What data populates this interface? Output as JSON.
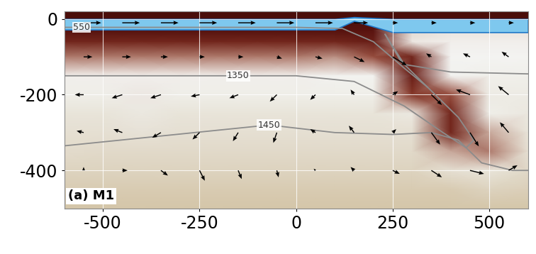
{
  "chart_data": {
    "type": "field",
    "panel_label": "(a) M1",
    "xlim": [
      -600,
      600
    ],
    "ylim": [
      -500,
      20
    ],
    "xticks": [
      -500,
      -250,
      0,
      250,
      500
    ],
    "yticks": [
      0,
      -200,
      -400
    ],
    "grid": true,
    "temperature": {
      "clim": [
        0,
        1600
      ],
      "x": [
        -600,
        -500,
        -400,
        -300,
        -200,
        -100,
        0,
        100,
        200,
        300,
        400,
        500,
        600
      ],
      "y": [
        20,
        0,
        -30,
        -60,
        -100,
        -150,
        -200,
        -250,
        -300,
        -350,
        -400,
        -450,
        -500
      ],
      "values": [
        [
          0,
          0,
          0,
          0,
          0,
          0,
          0,
          0,
          0,
          0,
          0,
          0,
          0
        ],
        [
          0,
          0,
          0,
          0,
          0,
          0,
          0,
          0,
          0,
          0,
          0,
          0,
          0
        ],
        [
          300,
          300,
          300,
          300,
          300,
          300,
          300,
          300,
          400,
          1300,
          1320,
          1320,
          1320
        ],
        [
          700,
          700,
          700,
          700,
          700,
          700,
          700,
          700,
          600,
          1330,
          1340,
          1340,
          1340
        ],
        [
          1100,
          1100,
          1100,
          1100,
          1100,
          1100,
          1100,
          1150,
          1000,
          700,
          1350,
          1350,
          1350
        ],
        [
          1340,
          1340,
          1340,
          1340,
          1340,
          1340,
          1340,
          1360,
          1360,
          600,
          1360,
          1370,
          1370
        ],
        [
          1380,
          1380,
          1330,
          1380,
          1380,
          1380,
          1380,
          1380,
          1380,
          900,
          1000,
          1390,
          1390
        ],
        [
          1420,
          1420,
          1400,
          1420,
          1420,
          1420,
          1420,
          1420,
          1420,
          1400,
          700,
          1380,
          1400
        ],
        [
          1440,
          1440,
          1430,
          1440,
          1440,
          1440,
          1440,
          1440,
          1440,
          1440,
          700,
          1200,
          1420
        ],
        [
          1450,
          1460,
          1460,
          1460,
          1460,
          1460,
          1460,
          1460,
          1460,
          1460,
          1200,
          1100,
          1440
        ],
        [
          1480,
          1480,
          1480,
          1480,
          1480,
          1480,
          1480,
          1480,
          1480,
          1480,
          1440,
          1420,
          1460
        ],
        [
          1500,
          1500,
          1500,
          1500,
          1500,
          1500,
          1500,
          1500,
          1500,
          1500,
          1500,
          1480,
          1490
        ],
        [
          1520,
          1520,
          1520,
          1520,
          1520,
          1520,
          1520,
          1520,
          1520,
          1520,
          1520,
          1520,
          1520
        ]
      ]
    },
    "crust": {
      "color": "#7ec8ee",
      "x": [
        -600,
        100,
        150,
        250,
        600
      ],
      "top": [
        0,
        0,
        5,
        0,
        0
      ],
      "bottom": [
        -28,
        -28,
        -5,
        -35,
        -35
      ]
    },
    "contours": [
      {
        "name": "550",
        "color": "#8c8c8c",
        "x": [
          -600,
          -555,
          -300,
          0,
          120,
          200,
          280,
          340
        ],
        "y": [
          -22,
          -22,
          -22,
          -22,
          -25,
          -60,
          -130,
          -180
        ]
      },
      {
        "name": "1350",
        "color": "#8c8c8c",
        "x": [
          -600,
          -150,
          0,
          150,
          280,
          380,
          440,
          460,
          420,
          330,
          270,
          230,
          280,
          400,
          600
        ],
        "y": [
          -150,
          -150,
          -150,
          -165,
          -230,
          -300,
          -340,
          -320,
          -260,
          -170,
          -110,
          -40,
          -120,
          -140,
          -145
        ]
      },
      {
        "name": "1450",
        "color": "#8c8c8c",
        "x": [
          -600,
          -70,
          100,
          250,
          350,
          420,
          480,
          560,
          600
        ],
        "y": [
          -335,
          -280,
          -300,
          -305,
          -300,
          -320,
          -380,
          -400,
          -400
        ]
      }
    ],
    "velocity": {
      "color": "#000000",
      "x": [
        -550,
        -450,
        -350,
        -250,
        -150,
        -50,
        50,
        150,
        250,
        350,
        450,
        550
      ],
      "y": [
        -10,
        -100,
        -200,
        -300,
        -400
      ],
      "u": [
        [
          1,
          1,
          1,
          1,
          1,
          1,
          1,
          0.8,
          0.3,
          0.3,
          0.3,
          0.3
        ],
        [
          0.5,
          0.5,
          0.4,
          0.3,
          0.3,
          0.3,
          0.4,
          0.6,
          0.8,
          -0.3,
          -0.4,
          -0.4
        ],
        [
          -0.5,
          -0.6,
          -0.6,
          -0.5,
          -0.5,
          -0.4,
          -0.3,
          -0.2,
          0.3,
          0.6,
          -0.8,
          -0.6
        ],
        [
          -0.4,
          -0.5,
          -0.5,
          -0.4,
          -0.3,
          -0.2,
          -0.3,
          -0.3,
          0.2,
          0.5,
          0.5,
          -0.5
        ],
        [
          0,
          0.3,
          0.4,
          0.3,
          0.2,
          0.1,
          -0.1,
          -0.2,
          0.4,
          0.6,
          0.8,
          0.5
        ]
      ],
      "v": [
        [
          0,
          0,
          0,
          0,
          0,
          0,
          0,
          0,
          0,
          0,
          0,
          0
        ],
        [
          0,
          0,
          0,
          0,
          0,
          -0.1,
          -0.1,
          -0.3,
          -0.5,
          0.2,
          0.2,
          0.3
        ],
        [
          0,
          -0.2,
          -0.2,
          -0.1,
          -0.2,
          -0.4,
          -0.3,
          0.3,
          0.2,
          -0.6,
          0.3,
          0.5
        ],
        [
          0.1,
          0.2,
          -0.3,
          -0.4,
          -0.5,
          -0.6,
          0.2,
          0.4,
          0.2,
          -0.7,
          -0.8,
          0.6
        ],
        [
          0.2,
          0,
          -0.3,
          -0.6,
          -0.5,
          -0.4,
          0.1,
          0.2,
          -0.2,
          -0.4,
          -0.2,
          0.3
        ]
      ]
    }
  }
}
